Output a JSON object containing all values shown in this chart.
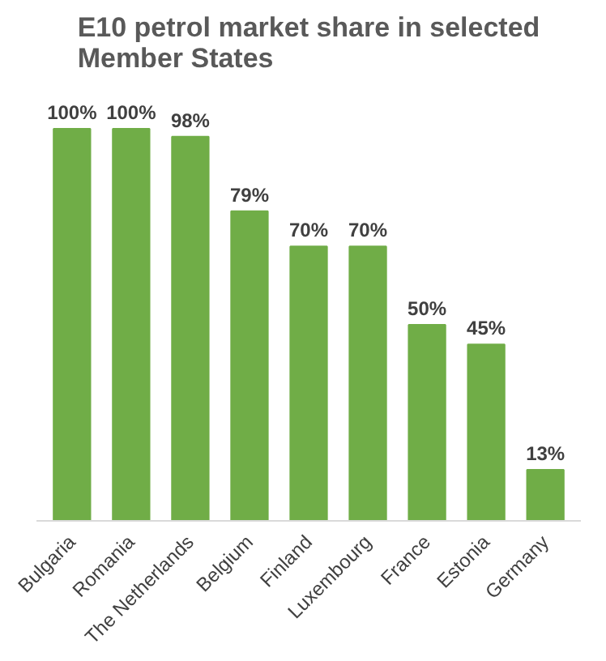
{
  "chart_data": {
    "type": "bar",
    "title": "E10 petrol market share in selected Member States",
    "categories": [
      "Bulgaria",
      "Romania",
      "The Netherlands",
      "Belgium",
      "Finland",
      "Luxembourg",
      "France",
      "Estonia",
      "Germany"
    ],
    "values": [
      100,
      100,
      98,
      79,
      70,
      70,
      50,
      45,
      13
    ],
    "value_labels": [
      "100%",
      "100%",
      "98%",
      "79%",
      "70%",
      "70%",
      "50%",
      "45%",
      "13%"
    ],
    "color": "#70ad47",
    "grid": false
  }
}
